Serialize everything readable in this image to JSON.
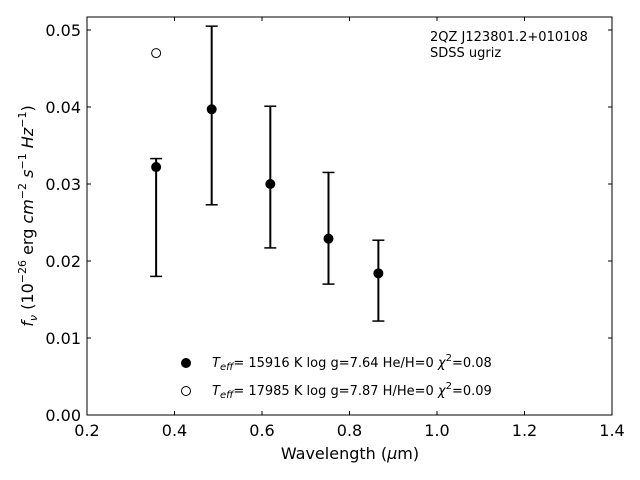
{
  "chart_data": {
    "type": "scatter",
    "title": "",
    "xlabel": "Wavelength (μm)",
    "ylabel": "f_ν (10^−26 erg cm^−2 s^−1 Hz^−1)",
    "xlim": [
      0.2,
      1.4
    ],
    "ylim": [
      0.0,
      0.0515
    ],
    "xticks": [
      "0.2",
      "0.4",
      "0.6",
      "0.8",
      "1.0",
      "1.2",
      "1.4"
    ],
    "yticks": [
      "0.00",
      "0.01",
      "0.02",
      "0.03",
      "0.04",
      "0.05"
    ],
    "annotation": [
      "2QZ J123801.2+010108",
      "SDSS ugriz"
    ],
    "grid": false,
    "legend_position": "lower-center",
    "series": [
      {
        "name": "Teff= 15916 K  log g=7.64  He/H=0  χ²=0.08",
        "marker": "filled-circle",
        "color": "#000000",
        "x": [
          0.358,
          0.485,
          0.619,
          0.752,
          0.866
        ],
        "y": [
          0.0322,
          0.0397,
          0.03,
          0.0229,
          0.0184
        ],
        "yerr_low": [
          0.018,
          0.0273,
          0.0217,
          0.017,
          0.0122
        ],
        "yerr_high": [
          0.0333,
          0.0505,
          0.0401,
          0.0315,
          0.0227
        ]
      },
      {
        "name": "Teff= 17985 K  log g=7.87  H/He=0  χ²=0.09",
        "marker": "open-circle",
        "color": "#000000",
        "x": [
          0.358
        ],
        "y": [
          0.047
        ]
      }
    ]
  }
}
